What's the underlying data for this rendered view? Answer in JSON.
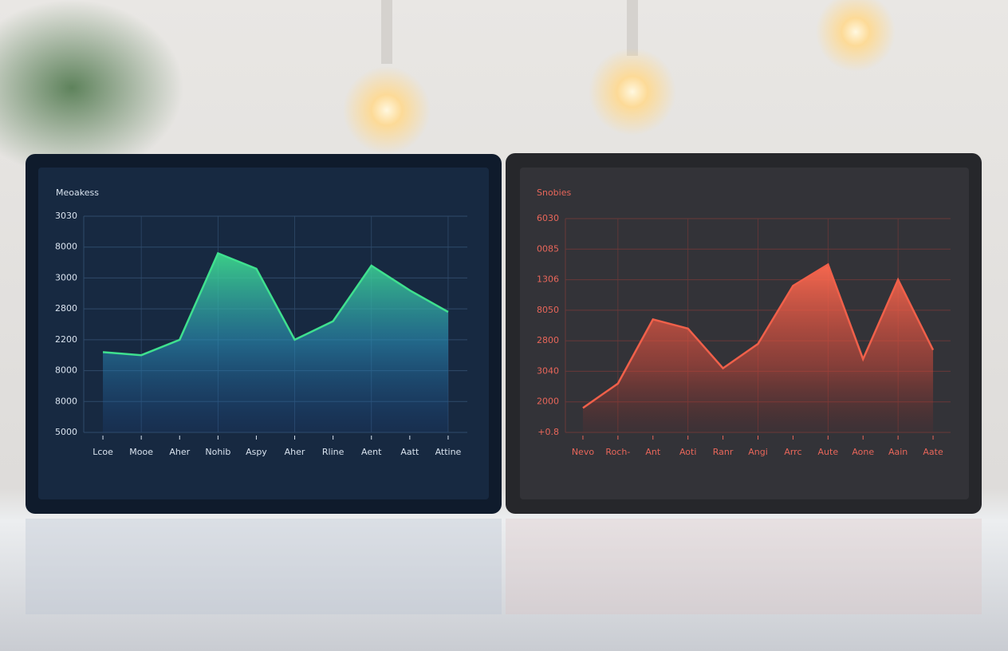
{
  "chart_data": [
    {
      "type": "area",
      "title": "Meoakess",
      "categories": [
        "Lcoe",
        "Mooe",
        "Aher",
        "Nohib",
        "Aspy",
        "Aher",
        "Rline",
        "Aent",
        "Aatt",
        "Attine"
      ],
      "values": [
        2.6,
        2.5,
        3.0,
        5.8,
        5.3,
        3.0,
        3.6,
        5.4,
        4.6,
        3.9
      ],
      "color": "#3fe08f",
      "ylim": [
        0,
        7
      ],
      "yticks": [
        {
          "value": 0,
          "label": "5000"
        },
        {
          "value": 1,
          "label": "8000"
        },
        {
          "value": 2,
          "label": "8000"
        },
        {
          "value": 3,
          "label": "2200"
        },
        {
          "value": 4,
          "label": "2800"
        },
        {
          "value": 5,
          "label": "3000"
        },
        {
          "value": 6,
          "label": "8000"
        },
        {
          "value": 7,
          "label": "3030"
        }
      ],
      "grid": true
    },
    {
      "type": "area",
      "title": "Snobies",
      "categories": [
        "Nevo",
        "Roch-",
        "Ant",
        "Aoti",
        "Ranr",
        "Angi",
        "Arrc",
        "Aute",
        "Aone",
        "Aain",
        "Aate"
      ],
      "values": [
        0.8,
        1.6,
        3.7,
        3.4,
        2.1,
        2.9,
        4.8,
        5.5,
        2.4,
        5.0,
        2.7
      ],
      "color": "#f0604a",
      "ylim": [
        0,
        7
      ],
      "yticks": [
        {
          "value": 0,
          "label": "+0.8"
        },
        {
          "value": 1,
          "label": "2000"
        },
        {
          "value": 2,
          "label": "3040"
        },
        {
          "value": 3,
          "label": "2800"
        },
        {
          "value": 4,
          "label": "8050"
        },
        {
          "value": 5,
          "label": "1306"
        },
        {
          "value": 6,
          "label": "0085"
        },
        {
          "value": 7,
          "label": "6030"
        }
      ],
      "grid": true
    }
  ]
}
